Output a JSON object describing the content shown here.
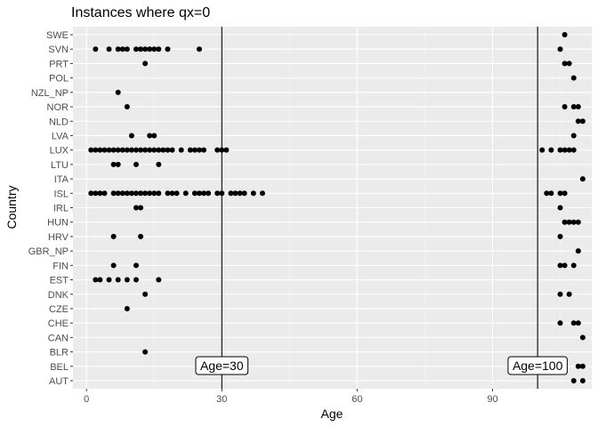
{
  "chart_data": {
    "type": "scatter",
    "title": "Instances where qx=0",
    "xlabel": "Age",
    "ylabel": "Country",
    "xlim": [
      -3,
      112
    ],
    "x_ticks": [
      0,
      30,
      60,
      90
    ],
    "grid": true,
    "categories": [
      "AUT",
      "BEL",
      "BLR",
      "CAN",
      "CHE",
      "CZE",
      "DNK",
      "EST",
      "FIN",
      "GBR_NP",
      "HRV",
      "HUN",
      "IRL",
      "ISL",
      "ITA",
      "LTU",
      "LUX",
      "LVA",
      "NLD",
      "NOR",
      "NZL_NP",
      "POL",
      "PRT",
      "SVN",
      "SWE"
    ],
    "points": {
      "SWE": [
        106
      ],
      "SVN": [
        2,
        5,
        7,
        8,
        9,
        11,
        12,
        13,
        14,
        15,
        16,
        18,
        25,
        105
      ],
      "PRT": [
        13,
        106,
        107
      ],
      "POL": [
        108
      ],
      "NZL_NP": [
        7
      ],
      "NOR": [
        9,
        106,
        108,
        109
      ],
      "NLD": [
        109,
        110
      ],
      "LVA": [
        10,
        14,
        15,
        108
      ],
      "LUX": [
        1,
        2,
        3,
        4,
        5,
        6,
        7,
        8,
        9,
        10,
        11,
        12,
        13,
        14,
        15,
        16,
        17,
        18,
        19,
        21,
        23,
        24,
        25,
        26,
        29,
        30,
        31,
        101,
        103,
        105,
        106,
        107,
        108
      ],
      "LTU": [
        6,
        7,
        11,
        16
      ],
      "ITA": [
        110
      ],
      "ISL": [
        1,
        2,
        3,
        4,
        6,
        7,
        8,
        9,
        10,
        11,
        12,
        13,
        14,
        15,
        16,
        18,
        19,
        20,
        22,
        24,
        25,
        26,
        27,
        29,
        30,
        32,
        33,
        34,
        35,
        37,
        39,
        102,
        103,
        105,
        106
      ],
      "IRL": [
        11,
        12,
        105
      ],
      "HUN": [
        106,
        107,
        108,
        109
      ],
      "HRV": [
        6,
        12,
        105
      ],
      "GBR_NP": [
        109
      ],
      "FIN": [
        6,
        11,
        105,
        106,
        108
      ],
      "EST": [
        2,
        3,
        5,
        7,
        9,
        11,
        16
      ],
      "DNK": [
        13,
        105,
        107
      ],
      "CZE": [
        9
      ],
      "CHE": [
        105,
        108,
        109
      ],
      "CAN": [
        110
      ],
      "BLR": [
        13
      ],
      "BEL": [
        109,
        110
      ],
      "AUT": [
        108,
        110
      ]
    },
    "vlines": [
      30,
      100
    ],
    "annotations": [
      {
        "text": "Age=30",
        "x": 30
      },
      {
        "text": "Age=100",
        "x": 100
      }
    ],
    "colors": {
      "panel": "#ebebeb",
      "grid_major": "#ffffff",
      "grid_minor": "#f2f2f2",
      "point": "#000000",
      "line": "#000000"
    }
  }
}
